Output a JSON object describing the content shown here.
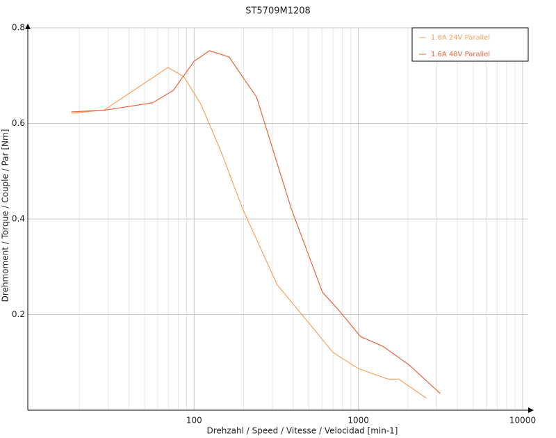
{
  "chart_data": {
    "type": "line",
    "title": "ST5709M1208",
    "xlabel": "Drehzahl / Speed / Vitesse / Velocidad [min-1]",
    "ylabel": "Drehmoment / Torque / Couple / Par [Nm]",
    "xscale": "log",
    "xlim": [
      10,
      10000
    ],
    "xticks": [
      100,
      1000,
      10000
    ],
    "xminor": [
      20,
      30,
      40,
      50,
      60,
      70,
      80,
      90,
      200,
      300,
      400,
      500,
      600,
      700,
      800,
      900,
      2000,
      3000,
      4000,
      5000,
      6000,
      7000,
      8000,
      9000
    ],
    "ylim": [
      0,
      0.8
    ],
    "yticks": [
      0.2,
      0.4,
      0.6,
      0.8
    ],
    "grid": true,
    "legend": "upper right",
    "series": [
      {
        "name": "1.6A  24V  Parallel",
        "color": "#f5a35c",
        "x": [
          17.9,
          28.3,
          45.9,
          69.2,
          86.5,
          110,
          147,
          197,
          321,
          521,
          698,
          1000,
          1517,
          1758,
          2594
        ],
        "values": [
          0.621,
          0.628,
          0.676,
          0.717,
          0.698,
          0.64,
          0.538,
          0.422,
          0.262,
          0.175,
          0.121,
          0.087,
          0.065,
          0.065,
          0.025
        ]
      },
      {
        "name": "1.6A  48V  Parallel",
        "color": "#e8643c",
        "x": [
          17.9,
          28.8,
          55.8,
          74.6,
          100,
          124,
          163,
          240,
          390,
          604,
          769,
          1030,
          1406,
          2032,
          3148
        ],
        "values": [
          0.624,
          0.628,
          0.643,
          0.669,
          0.73,
          0.752,
          0.739,
          0.655,
          0.422,
          0.247,
          0.207,
          0.154,
          0.134,
          0.095,
          0.035
        ]
      }
    ]
  }
}
